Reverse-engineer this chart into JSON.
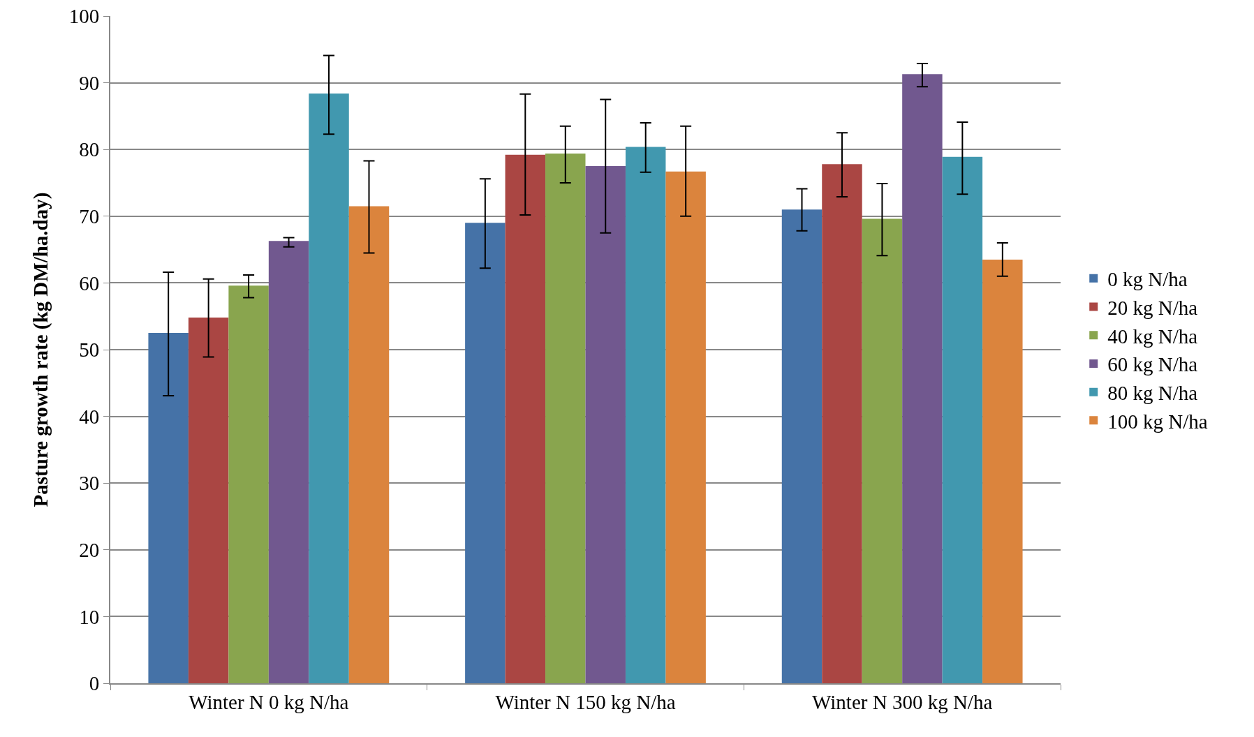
{
  "chart_data": {
    "type": "bar",
    "ylabel": "Pasture growth rate (kg DM/ha.day)",
    "categories": [
      "Winter N 0 kg N/ha",
      "Winter N 150 kg N/ha",
      "Winter N 300 kg N/ha"
    ],
    "series": [
      {
        "name": "0 kg N/ha",
        "color": "#4572a7",
        "values": [
          52.5,
          69.0,
          71.0
        ],
        "errors": [
          [
            43.1,
            61.6
          ],
          [
            62.2,
            75.6
          ],
          [
            67.8,
            74.1
          ]
        ]
      },
      {
        "name": "20 kg N/ha",
        "color": "#aa4643",
        "values": [
          54.8,
          79.2,
          77.8
        ],
        "errors": [
          [
            48.9,
            60.6
          ],
          [
            70.2,
            88.3
          ],
          [
            72.9,
            82.5
          ]
        ]
      },
      {
        "name": "40 kg N/ha",
        "color": "#89a54e",
        "values": [
          59.6,
          79.4,
          69.6
        ],
        "errors": [
          [
            57.8,
            61.2
          ],
          [
            75.0,
            83.5
          ],
          [
            64.1,
            74.9
          ]
        ]
      },
      {
        "name": "60 kg N/ha",
        "color": "#71588f",
        "values": [
          66.3,
          77.5,
          91.3
        ],
        "errors": [
          [
            65.4,
            66.8
          ],
          [
            67.5,
            87.5
          ],
          [
            89.4,
            92.9
          ]
        ]
      },
      {
        "name": "80 kg N/ha",
        "color": "#4198af",
        "values": [
          88.4,
          80.4,
          78.9
        ],
        "errors": [
          [
            82.3,
            94.1
          ],
          [
            76.6,
            84.0
          ],
          [
            73.3,
            84.1
          ]
        ]
      },
      {
        "name": "100 kg N/ha",
        "color": "#db843d",
        "values": [
          71.5,
          76.7,
          63.5
        ],
        "errors": [
          [
            64.5,
            78.3
          ],
          [
            70.0,
            83.5
          ],
          [
            61.0,
            66.0
          ]
        ]
      }
    ],
    "ylim": [
      0,
      100
    ],
    "yticks": [
      0,
      10,
      20,
      30,
      40,
      50,
      60,
      70,
      80,
      90,
      100
    ],
    "grid": "y",
    "legend": "right"
  }
}
